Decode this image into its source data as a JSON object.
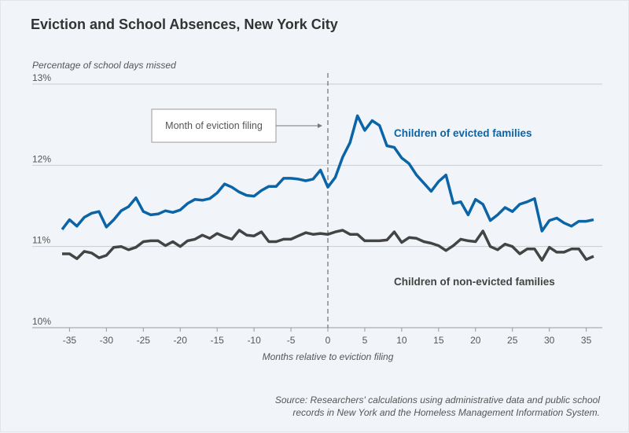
{
  "chart_data": {
    "type": "line",
    "title": "Eviction and School Absences, New York City",
    "ylabel": "Percentage of school days missed",
    "xlabel": "Months relative to eviction filing",
    "xlim": [
      -36,
      36
    ],
    "ylim": [
      10,
      13
    ],
    "x_ticks": [
      -35,
      -30,
      -25,
      -20,
      -15,
      -10,
      -5,
      0,
      5,
      10,
      15,
      20,
      25,
      30,
      35
    ],
    "y_ticks": [
      "10%",
      "11%",
      "12%",
      "13%"
    ],
    "y_tick_values": [
      10,
      11,
      12,
      13
    ],
    "grid": "horizontal",
    "annotation": "Month of eviction filing",
    "x": [
      -36,
      -35,
      -34,
      -33,
      -32,
      -31,
      -30,
      -29,
      -28,
      -27,
      -26,
      -25,
      -24,
      -23,
      -22,
      -21,
      -20,
      -19,
      -18,
      -17,
      -16,
      -15,
      -14,
      -13,
      -12,
      -11,
      -10,
      -9,
      -8,
      -7,
      -6,
      -5,
      -4,
      -3,
      -2,
      -1,
      0,
      1,
      2,
      3,
      4,
      5,
      6,
      7,
      8,
      9,
      10,
      11,
      12,
      13,
      14,
      15,
      16,
      17,
      18,
      19,
      20,
      21,
      22,
      23,
      24,
      25,
      26,
      27,
      28,
      29,
      30,
      31,
      32,
      33,
      34,
      35,
      36
    ],
    "series": [
      {
        "name": "Children of evicted families",
        "color": "#0b64a6",
        "values": [
          11.21,
          11.33,
          11.25,
          11.36,
          11.41,
          11.43,
          11.24,
          11.33,
          11.44,
          11.49,
          11.6,
          11.43,
          11.39,
          11.4,
          11.44,
          11.42,
          11.45,
          11.53,
          11.58,
          11.57,
          11.59,
          11.66,
          11.77,
          11.73,
          11.67,
          11.63,
          11.62,
          11.69,
          11.74,
          11.74,
          11.84,
          11.84,
          11.83,
          11.81,
          11.83,
          11.94,
          11.73,
          11.85,
          12.1,
          12.28,
          12.61,
          12.43,
          12.55,
          12.49,
          12.24,
          12.22,
          12.09,
          12.02,
          11.88,
          11.78,
          11.68,
          11.8,
          11.88,
          11.53,
          11.55,
          11.39,
          11.58,
          11.52,
          11.32,
          11.39,
          11.48,
          11.43,
          11.52,
          11.55,
          11.59,
          11.19,
          11.32,
          11.35,
          11.29,
          11.25,
          11.31,
          11.31,
          11.33
        ]
      },
      {
        "name": "Children of non-evicted families",
        "color": "#444444",
        "values": [
          10.91,
          10.91,
          10.85,
          10.94,
          10.92,
          10.86,
          10.89,
          10.99,
          11.0,
          10.96,
          10.99,
          11.06,
          11.07,
          11.07,
          11.01,
          11.06,
          11.0,
          11.07,
          11.09,
          11.14,
          11.1,
          11.16,
          11.12,
          11.09,
          11.2,
          11.14,
          11.13,
          11.18,
          11.06,
          11.06,
          11.09,
          11.09,
          11.13,
          11.17,
          11.15,
          11.16,
          11.15,
          11.18,
          11.2,
          11.15,
          11.15,
          11.07,
          11.07,
          11.07,
          11.08,
          11.18,
          11.05,
          11.11,
          11.1,
          11.06,
          11.04,
          11.01,
          10.95,
          11.01,
          11.09,
          11.07,
          11.06,
          11.19,
          11.0,
          10.96,
          11.03,
          11.0,
          10.91,
          10.97,
          10.97,
          10.83,
          10.99,
          10.93,
          10.93,
          10.97,
          10.97,
          10.84,
          10.88
        ]
      }
    ]
  },
  "source": {
    "line1": "Source: Researchers' calculations using administrative data and public school",
    "line2": "records in New York and the Homeless Management Information System."
  }
}
